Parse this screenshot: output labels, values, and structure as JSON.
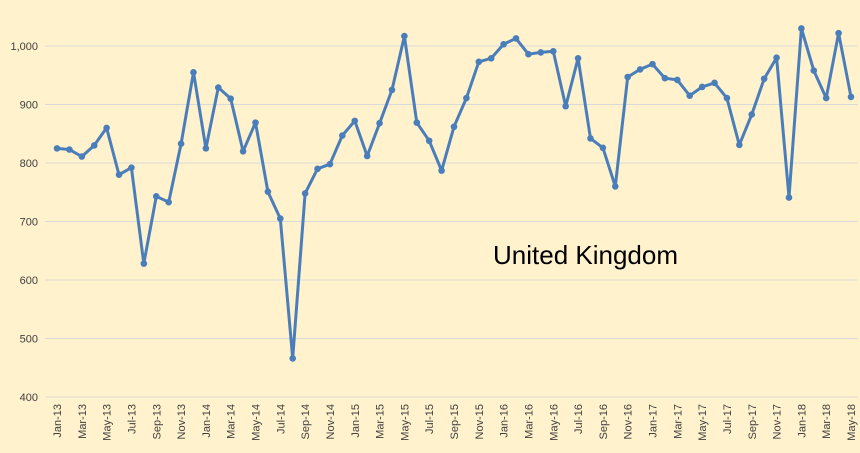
{
  "chart_data": {
    "type": "line",
    "title": "",
    "annotation": "United Kingdom",
    "xlabel": "",
    "ylabel": "",
    "ylim": [
      400,
      1050
    ],
    "yticks": [
      400,
      500,
      600,
      700,
      800,
      900,
      1000
    ],
    "ytick_labels": [
      "400",
      "500",
      "600",
      "700",
      "800",
      "900",
      "1,000"
    ],
    "grid": true,
    "legend": "none",
    "colors": {
      "line": "#4a7ebb",
      "background": "#fff2cc",
      "grid": "#d9d9d9"
    },
    "x": [
      "Jan-13",
      "Feb-13",
      "Mar-13",
      "Apr-13",
      "May-13",
      "Jun-13",
      "Jul-13",
      "Aug-13",
      "Sep-13",
      "Oct-13",
      "Nov-13",
      "Dec-13",
      "Jan-14",
      "Feb-14",
      "Mar-14",
      "Apr-14",
      "May-14",
      "Jun-14",
      "Jul-14",
      "Aug-14",
      "Sep-14",
      "Oct-14",
      "Nov-14",
      "Dec-14",
      "Jan-15",
      "Feb-15",
      "Mar-15",
      "Apr-15",
      "May-15",
      "Jun-15",
      "Jul-15",
      "Aug-15",
      "Sep-15",
      "Oct-15",
      "Nov-15",
      "Dec-15",
      "Jan-16",
      "Feb-16",
      "Mar-16",
      "Apr-16",
      "May-16",
      "Jun-16",
      "Jul-16",
      "Aug-16",
      "Sep-16",
      "Oct-16",
      "Nov-16",
      "Dec-16",
      "Jan-17",
      "Feb-17",
      "Mar-17",
      "Apr-17",
      "May-17",
      "Jun-17",
      "Jul-17",
      "Aug-17",
      "Sep-17",
      "Oct-17",
      "Nov-17",
      "Dec-17",
      "Jan-18",
      "Feb-18",
      "Mar-18",
      "Apr-18",
      "May-18"
    ],
    "xtick_labels": [
      "Jan-13",
      "Mar-13",
      "May-13",
      "Jul-13",
      "Sep-13",
      "Nov-13",
      "Jan-14",
      "Mar-14",
      "May-14",
      "Jul-14",
      "Sep-14",
      "Nov-14",
      "Jan-15",
      "Mar-15",
      "May-15",
      "Jul-15",
      "Sep-15",
      "Nov-15",
      "Jan-16",
      "Mar-16",
      "May-16",
      "Jul-16",
      "Sep-16",
      "Nov-16",
      "Jan-17",
      "Mar-17",
      "May-17",
      "Jul-17",
      "Sep-17",
      "Nov-17",
      "Jan-18",
      "Mar-18",
      "May-18"
    ],
    "series": [
      {
        "name": "United Kingdom",
        "values": [
          825,
          823,
          811,
          830,
          860,
          780,
          792,
          628,
          743,
          733,
          833,
          955,
          825,
          929,
          910,
          820,
          869,
          751,
          705,
          466,
          748,
          790,
          798,
          847,
          872,
          812,
          868,
          925,
          1017,
          869,
          838,
          787,
          862,
          911,
          973,
          979,
          1003,
          1013,
          986,
          989,
          991,
          897,
          979,
          842,
          826,
          760,
          947,
          960,
          969,
          945,
          942,
          915,
          930,
          937,
          911,
          831,
          883,
          944,
          980,
          741,
          1030,
          958,
          911,
          1022,
          913
        ]
      }
    ]
  }
}
